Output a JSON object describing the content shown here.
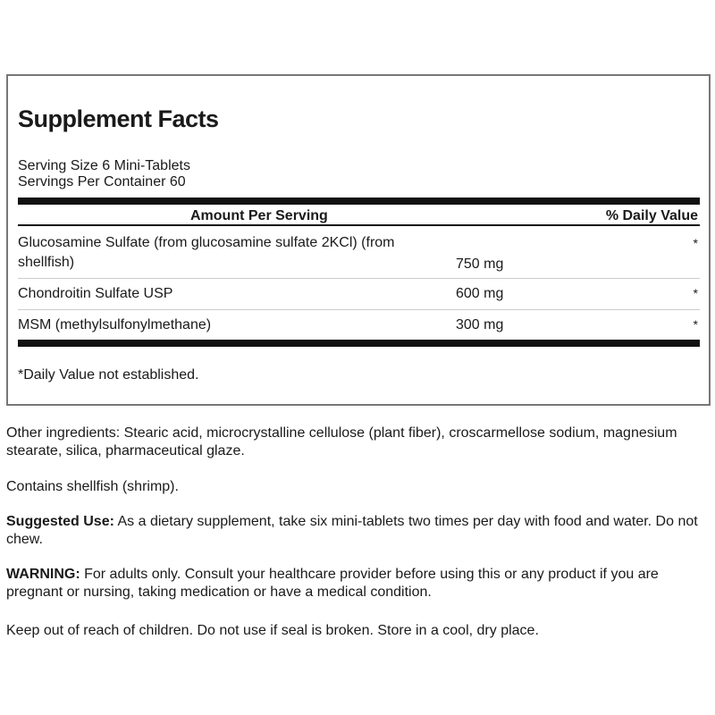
{
  "facts": {
    "title": "Supplement Facts",
    "serving_size": "Serving Size 6 Mini-Tablets",
    "servings_per_container": "Servings Per Container 60",
    "header_amount": "Amount Per Serving",
    "header_dv": "% Daily Value",
    "rows": [
      {
        "name_line1": "Glucosamine Sulfate (from glucosamine sulfate 2KCl) (from",
        "name_line2": "shellfish)",
        "amount": "750 mg",
        "dv": "*"
      },
      {
        "name_line1": "Chondroitin Sulfate USP",
        "amount": "600 mg",
        "dv": "*"
      },
      {
        "name_line1": "MSM (methylsulfonylmethane)",
        "amount": "300 mg",
        "dv": "*"
      }
    ],
    "footnote": "*Daily Value not established."
  },
  "info": {
    "other_ingredients": "Other ingredients: Stearic acid, microcrystalline cellulose (plant fiber), croscarmellose sodium, magnesium stearate, silica, pharmaceutical glaze.",
    "allergen": "Contains shellfish (shrimp).",
    "suggested_label": "Suggested Use:",
    "suggested_text": " As a dietary supplement, take six mini-tablets two times per day with food and water. Do not chew.",
    "warning_label": "WARNING:",
    "warning_text": " For adults only. Consult your healthcare provider before using this or any product if you are pregnant or nursing, taking medication or have a medical condition.",
    "storage": "Keep out of reach of children. Do not use if seal is broken. Store in a cool, dry place."
  }
}
